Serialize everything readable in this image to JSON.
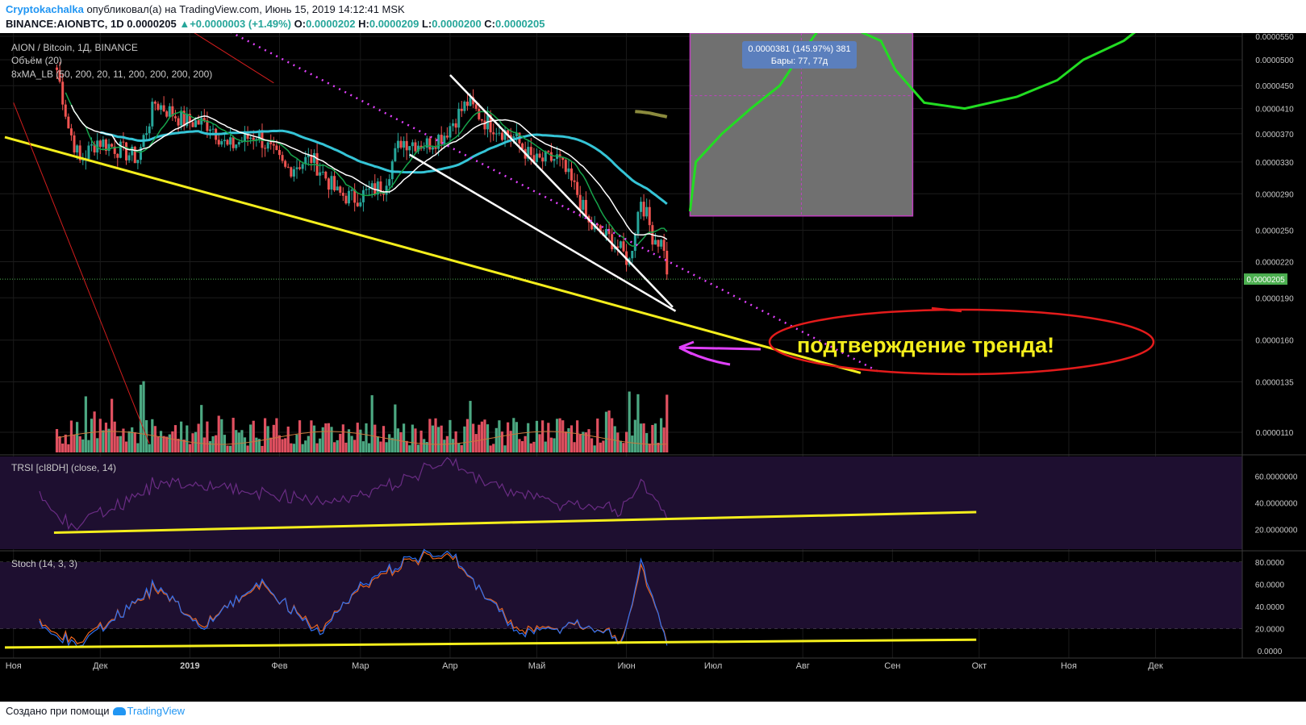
{
  "header": {
    "author": "Cryptokachalka",
    "published_text": "опубликовал(а) на TradingView.com, Июнь 15, 2019 14:12:41 MSK",
    "symbol": "BINANCE:AIONBTC, 1D",
    "last": "0.0000205",
    "arrow": "▲",
    "change": "+0.0000003 (+1.49%)",
    "o_label": "O:",
    "o": "0.0000202",
    "h_label": "H:",
    "h": "0.0000209",
    "l_label": "L:",
    "l": "0.0000200",
    "c_label": "C:",
    "c": "0.0000205"
  },
  "legend": {
    "main": "AION / Bitcoin, 1Д, BINANCE",
    "volume": "Объём (20)",
    "ma": "8xMA_LB (50, 200, 20, 11, 200, 200, 200, 200)",
    "trsi": "TRSI [cI8DH] (close, 14)",
    "stoch": "Stoch (14, 3, 3)"
  },
  "annotations": {
    "measure_value": "0.0000381 (145.97%) 381",
    "measure_bars": "Бары: 77, 77д",
    "callout": "подтверждение тренда!"
  },
  "footer": {
    "made_with": "Создано при помощи",
    "brand": "TradingView"
  },
  "colors": {
    "bg": "#000000",
    "bull": "#26a69a",
    "bear": "#ef5350",
    "vol_bull": "#4ca882",
    "vol_bear": "#e05060",
    "ma_white": "#ffffff",
    "ma_green": "#16a34a",
    "ma_cyan": "#35c4d6",
    "ma_olive": "#8b8a3d",
    "trend_yellow": "#f4ee1c",
    "dotted_magenta": "#e040fb",
    "ellipse_red": "#e31b1b",
    "arrow_magenta": "#e040fb",
    "callout_text": "#f4ee1c",
    "price_label": "#4caf50",
    "measure_box": "#707070",
    "measure_label": "#5b7fbd",
    "green_curve": "#22dd22",
    "red_line": "#d21d1d",
    "osc_bg": "#1e0f30",
    "osc_line": "#6a2c84",
    "stoch_k": "#2f6ff0",
    "stoch_d": "#e8641f"
  },
  "chart_data": [
    {
      "type": "candlestick",
      "title": "AION / Bitcoin, 1Д, BINANCE",
      "x_tick_labels": [
        "Ноя",
        "Дек",
        "2019",
        "Фев",
        "Мар",
        "Апр",
        "Май",
        "Июн",
        "Июл",
        "Авг",
        "Сен",
        "Окт",
        "Ноя",
        "Дек"
      ],
      "y_scale": "log",
      "y_tick_labels": [
        "0.0000550",
        "0.0000500",
        "0.0000450",
        "0.0000410",
        "0.0000370",
        "0.0000330",
        "0.0000290",
        "0.0000250",
        "0.0000220",
        "0.0000190",
        "0.0000160",
        "0.0000135",
        "0.0000110"
      ],
      "ylim": [
        1.05e-05,
        5.6e-05
      ],
      "last_price_label": "0.0000205",
      "close_path": [
        {
          "x": "2018-11-16",
          "y": 4.8e-05
        },
        {
          "x": "2018-11-20",
          "y": 3.8e-05
        },
        {
          "x": "2018-11-24",
          "y": 3.3e-05
        },
        {
          "x": "2018-11-30",
          "y": 3.6e-05
        },
        {
          "x": "2018-12-06",
          "y": 3.5e-05
        },
        {
          "x": "2018-12-14",
          "y": 3.35e-05
        },
        {
          "x": "2018-12-20",
          "y": 4.2e-05
        },
        {
          "x": "2018-12-30",
          "y": 3.9e-05
        },
        {
          "x": "2019-01-08",
          "y": 3.85e-05
        },
        {
          "x": "2019-01-14",
          "y": 3.5e-05
        },
        {
          "x": "2019-01-24",
          "y": 3.7e-05
        },
        {
          "x": "2019-02-03",
          "y": 3.2e-05
        },
        {
          "x": "2019-02-12",
          "y": 3.35e-05
        },
        {
          "x": "2019-02-21",
          "y": 2.9e-05
        },
        {
          "x": "2019-02-27",
          "y": 2.85e-05
        },
        {
          "x": "2019-03-09",
          "y": 3e-05
        },
        {
          "x": "2019-03-15",
          "y": 3.6e-05
        },
        {
          "x": "2019-03-24",
          "y": 3.55e-05
        },
        {
          "x": "2019-03-30",
          "y": 3.7e-05
        },
        {
          "x": "2019-04-07",
          "y": 4.2e-05
        },
        {
          "x": "2019-04-13",
          "y": 3.9e-05
        },
        {
          "x": "2019-04-23",
          "y": 3.65e-05
        },
        {
          "x": "2019-04-30",
          "y": 3.3e-05
        },
        {
          "x": "2019-05-08",
          "y": 3.35e-05
        },
        {
          "x": "2019-05-15",
          "y": 2.9e-05
        },
        {
          "x": "2019-05-19",
          "y": 2.55e-05
        },
        {
          "x": "2019-05-27",
          "y": 2.4e-05
        },
        {
          "x": "2019-06-02",
          "y": 2.2e-05
        },
        {
          "x": "2019-06-06",
          "y": 2.85e-05
        },
        {
          "x": "2019-06-10",
          "y": 2.45e-05
        },
        {
          "x": "2019-06-14",
          "y": 2.35e-05
        },
        {
          "x": "2019-06-15",
          "y": 2.05e-05
        }
      ]
    },
    {
      "type": "line",
      "title": "TRSI [cI8DH] (close, 14)",
      "y_tick_labels": [
        "60.0000000",
        "40.0000000",
        "20.0000000"
      ],
      "ylim": [
        5,
        75
      ],
      "x": [
        "2018-11-10",
        "2018-11-22",
        "2018-12-05",
        "2018-12-20",
        "2019-01-10",
        "2019-02-01",
        "2019-02-20",
        "2019-03-15",
        "2019-04-01",
        "2019-04-20",
        "2019-05-10",
        "2019-05-30",
        "2019-06-06",
        "2019-06-15"
      ],
      "values": [
        42,
        22,
        35,
        55,
        52,
        45,
        40,
        58,
        70,
        50,
        40,
        35,
        55,
        33
      ]
    },
    {
      "type": "line",
      "title": "Stoch (14, 3, 3)",
      "y_tick_labels": [
        "80.0000",
        "60.0000",
        "40.0000",
        "20.0000",
        "0.0000"
      ],
      "ylim": [
        0,
        90
      ],
      "x": [
        "2018-11-10",
        "2018-11-25",
        "2018-12-20",
        "2019-01-05",
        "2019-01-25",
        "2019-02-15",
        "2019-03-01",
        "2019-03-18",
        "2019-04-02",
        "2019-04-25",
        "2019-05-15",
        "2019-05-31",
        "2019-06-06",
        "2019-06-15"
      ],
      "series": [
        {
          "values": [
            20,
            5,
            60,
            20,
            62,
            15,
            60,
            85,
            85,
            15,
            25,
            10,
            80,
            10
          ]
        },
        {
          "values": [
            22,
            8,
            58,
            22,
            60,
            18,
            58,
            83,
            83,
            18,
            24,
            12,
            75,
            12
          ]
        }
      ]
    }
  ]
}
